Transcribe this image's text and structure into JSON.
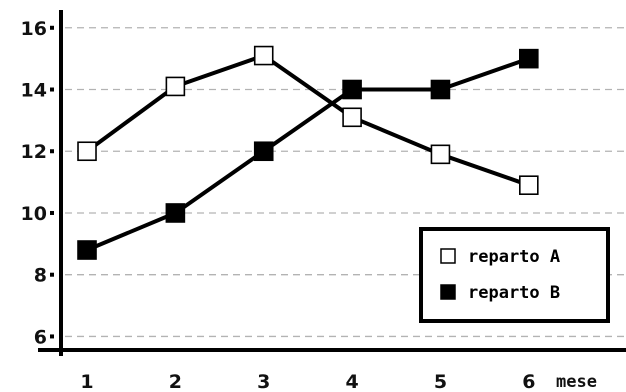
{
  "chart_data": {
    "type": "line",
    "x": [
      1,
      2,
      3,
      4,
      5,
      6
    ],
    "xlabel": "mese",
    "ylabel": "",
    "title": "",
    "xlim": [
      0.4,
      7.1
    ],
    "ylim": [
      4.2,
      16.9
    ],
    "yticks": [
      6,
      8,
      10,
      12,
      14,
      16
    ],
    "grid": true,
    "legend_position": "bottom-right",
    "series": [
      {
        "name": "reparto A",
        "marker": "open-square",
        "color": "#000000",
        "values": [
          12,
          14.1,
          15.1,
          13.1,
          11.9,
          10.9
        ]
      },
      {
        "name": "reparto B",
        "marker": "filled-square",
        "color": "#000000",
        "values": [
          8.8,
          10,
          12,
          14,
          14,
          15
        ]
      }
    ]
  }
}
